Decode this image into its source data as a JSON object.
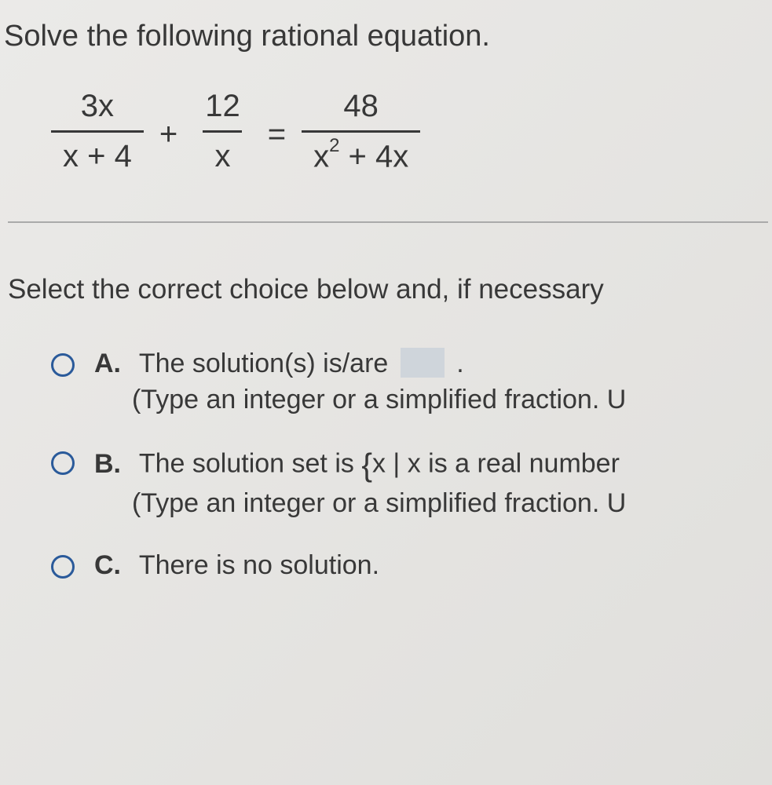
{
  "question": {
    "prompt": "Solve the following rational equation.",
    "equation": {
      "frac1": {
        "num": "3x",
        "den": "x + 4"
      },
      "op1": "+",
      "frac2": {
        "num": "12",
        "den": "x"
      },
      "op2": "=",
      "frac3": {
        "num": "48",
        "den_part1": "x",
        "den_exp": "2",
        "den_part2": " + 4x"
      }
    }
  },
  "instruction": "Select the correct choice below and, if necessary",
  "options": {
    "A": {
      "label": "A.",
      "line1_pre": "The solution(s) is/are ",
      "line1_post": ".",
      "line2": "(Type an integer or a simplified fraction. U"
    },
    "B": {
      "label": "B.",
      "line1_pre": "The solution set is ",
      "line1_brace": "{",
      "line1_post": "x | x is a real number",
      "line2": "(Type an integer or a simplified fraction. U"
    },
    "C": {
      "label": "C.",
      "line1": "There is no solution."
    }
  },
  "styling": {
    "background_color": "#e8e8e8",
    "text_color": "#383838",
    "radio_border_color": "#2a5a9a",
    "answer_box_color": "#cfd5db",
    "divider_color": "#aaaaaa",
    "prompt_fontsize": 38,
    "option_fontsize": 34,
    "equation_fontsize": 40
  }
}
